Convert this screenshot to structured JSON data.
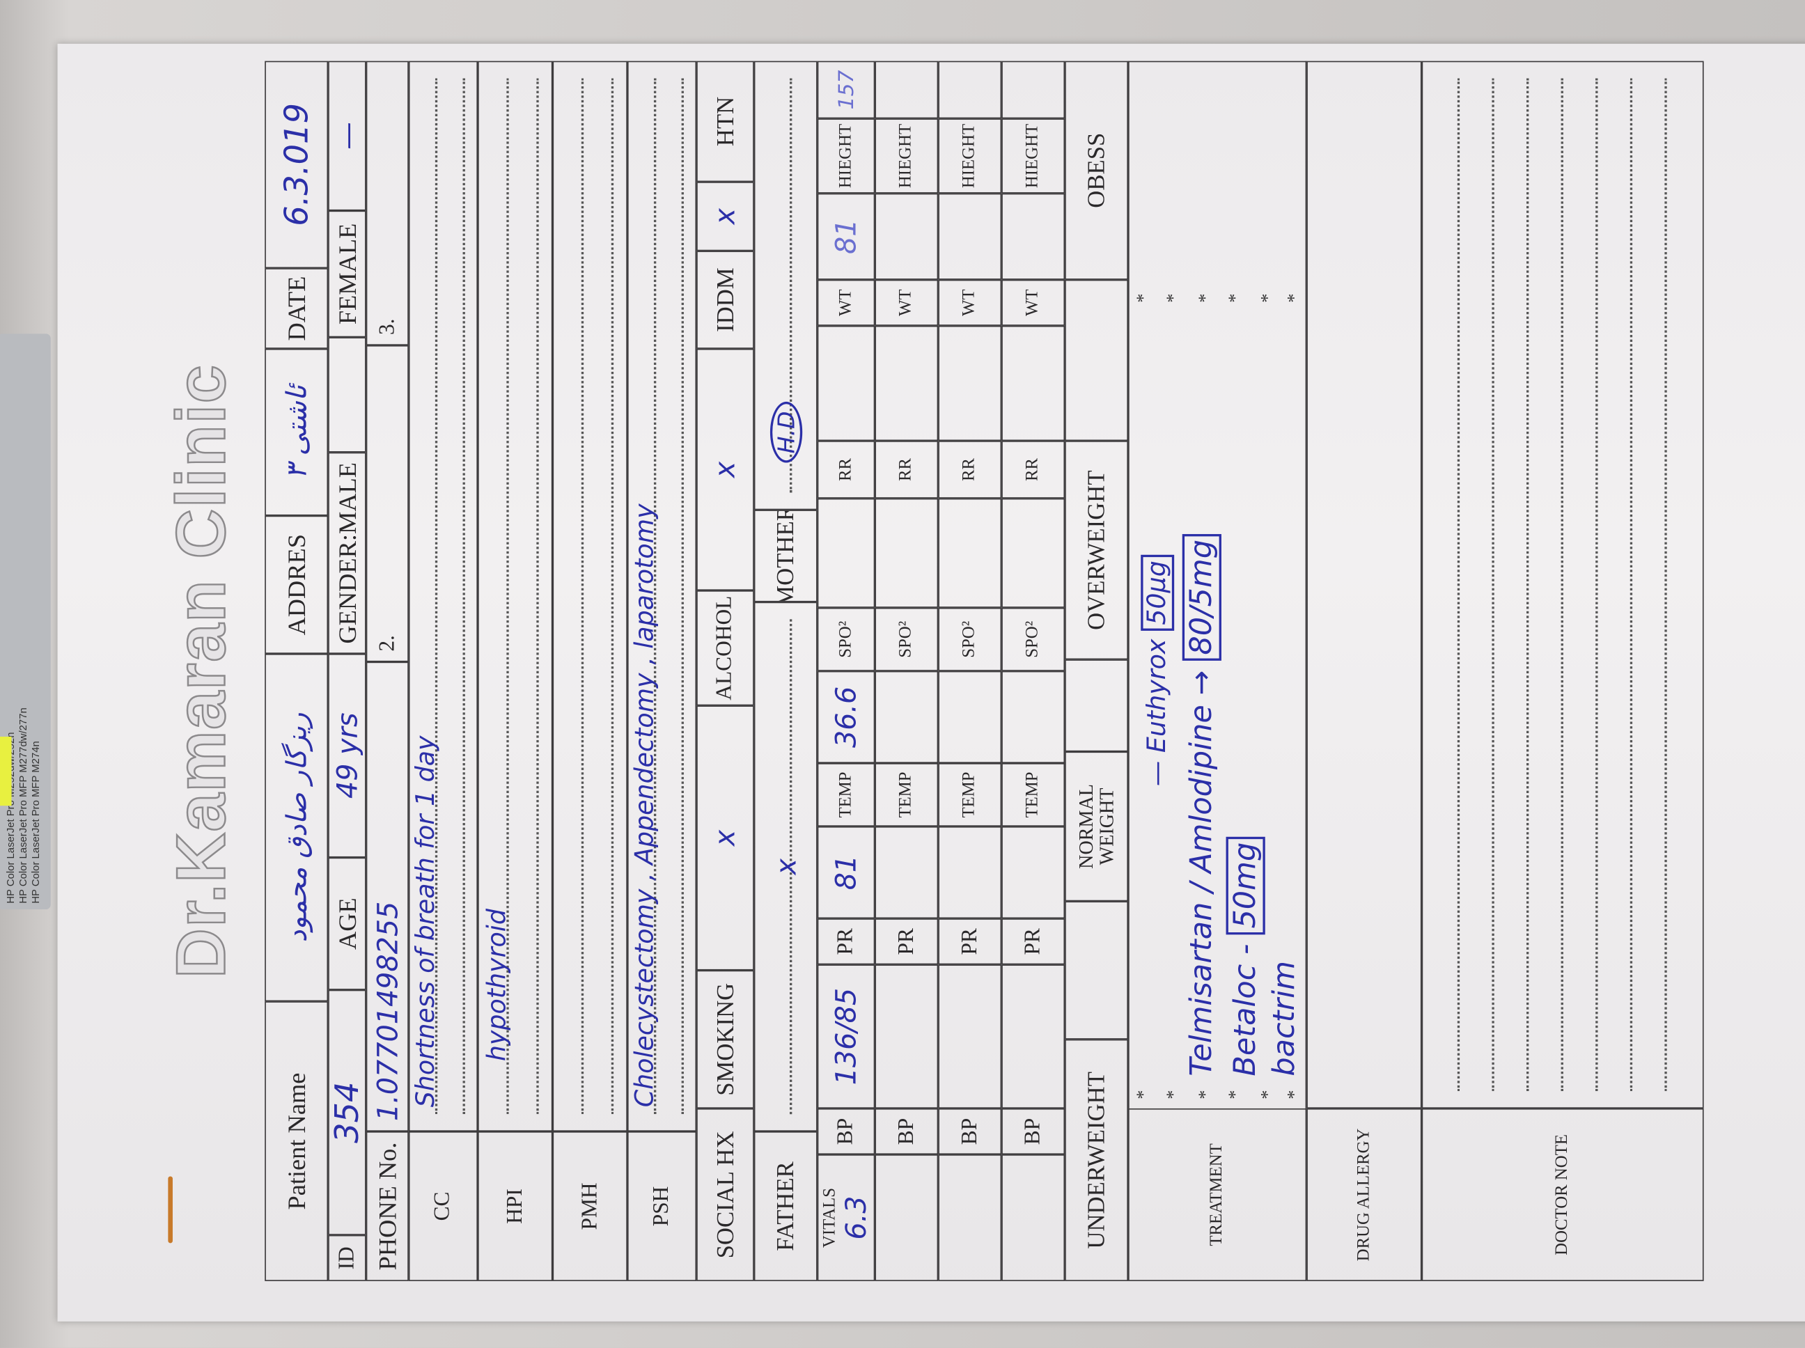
{
  "clinic": {
    "title": "Dr.Kamaran Clinic"
  },
  "printer_label": "HP Color LaserJet Pro M252dw/252n\nHP Color LaserJet Pro MFP M277dw/277n\nHP Color LaserJet Pro MFP M274n",
  "header": {
    "patient_name_label": "Patient Name",
    "patient_name": "ريزگار صادق محمود",
    "address_label": "ADDRES",
    "address": "ئاشتى ٣",
    "date_label": "DATE",
    "date": "6.3.019",
    "id_label": "ID",
    "id": "354",
    "age_label": "AGE",
    "age": "49 yrs",
    "gender_male_label": "GENDER:MALE",
    "gender_female_label": "FEMALE",
    "female_mark": "—",
    "phone_label": "PHONE No.",
    "phone": "1.07701498255",
    "phone2_label": "2.",
    "phone3_label": "3."
  },
  "history": {
    "cc_label": "CC",
    "cc": "Shortness of breath for 1 day",
    "hpi_label": "HPI",
    "hpi": "hypothyroid",
    "pmh_label": "PMH",
    "pmh": "",
    "psh_label": "PSH",
    "psh": "Cholecystectomy , Appendectomy , laparotomy"
  },
  "social": {
    "label": "SOCIAL HX",
    "smoking_label": "SMOKING",
    "smoking": "x",
    "alcohol_label": "ALCOHOL",
    "alcohol": "x",
    "iddm_label": "IDDM",
    "iddm": "x",
    "htn_label": "HTN",
    "htn_mark": "/"
  },
  "family": {
    "father_label": "FATHER",
    "father": "x",
    "mother_label": "MOTHER",
    "mother": "H.D"
  },
  "vitals": {
    "label": "VITALS",
    "col_labels": {
      "bp": "BP",
      "pr": "PR",
      "temp": "TEMP",
      "spo2": "SPO²",
      "rr": "RR",
      "wt": "WT",
      "height": "HIEGHT"
    },
    "rows": [
      {
        "date": "6.3",
        "bp": "136/85",
        "pr": "81",
        "temp": "36.6",
        "spo2": "",
        "rr": "",
        "wt": "81",
        "height": "157"
      },
      {
        "date": "",
        "bp": "",
        "pr": "",
        "temp": "",
        "spo2": "",
        "rr": "",
        "wt": "",
        "height": ""
      },
      {
        "date": "",
        "bp": "",
        "pr": "",
        "temp": "",
        "spo2": "",
        "rr": "",
        "wt": "",
        "height": ""
      },
      {
        "date": "",
        "bp": "",
        "pr": "",
        "temp": "",
        "spo2": "",
        "rr": "",
        "wt": "",
        "height": ""
      }
    ]
  },
  "weight_class": {
    "underweight": "UNDERWEIGHT",
    "normal": "NORMAL WEIGHT",
    "overweight": "OVERWEIGHT",
    "obese": "OBESS"
  },
  "treatment": {
    "label": "TREATMENT",
    "items": [
      {
        "drug": "— Euthyrox",
        "dose": "50µg"
      },
      {
        "drug": "Telmisartan / Amlodipine →",
        "dose": "80/5mg"
      },
      {
        "drug": "Betaloc -",
        "dose": "50mg"
      },
      {
        "drug": "bactrim",
        "dose": ""
      }
    ]
  },
  "drug_allergy": {
    "label": "DRUG ALLERGY",
    "value": ""
  },
  "doctor_note": {
    "label": "DOCTOR NOTE",
    "value": ""
  }
}
